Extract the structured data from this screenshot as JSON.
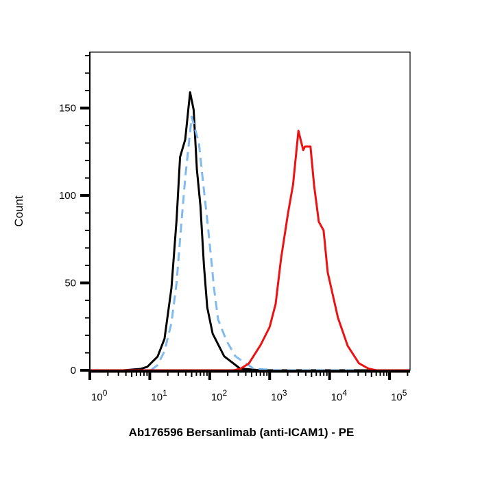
{
  "chart_data": {
    "type": "line",
    "title": "",
    "xlabel": "Ab176596 Bersanlimab (anti-ICAM1) - PE",
    "ylabel": "Count",
    "xscale": "log",
    "xlim": [
      1,
      220000
    ],
    "ylim": [
      0,
      182
    ],
    "grid": false,
    "legend": "none",
    "x_ticks": [
      {
        "value": 1,
        "base": "10",
        "exp": "0"
      },
      {
        "value": 10,
        "base": "10",
        "exp": "1"
      },
      {
        "value": 100,
        "base": "10",
        "exp": "2"
      },
      {
        "value": 1000,
        "base": "10",
        "exp": "3"
      },
      {
        "value": 10000,
        "base": "10",
        "exp": "4"
      },
      {
        "value": 100000,
        "base": "10",
        "exp": "5"
      }
    ],
    "y_ticks": [
      "0",
      "50",
      "100",
      "150"
    ],
    "series": [
      {
        "color": "#000000",
        "style": "solid",
        "x": [
          1,
          3.6,
          7,
          9.1,
          13.5,
          17.6,
          23,
          28,
          32,
          39,
          47,
          54,
          61,
          70,
          80,
          91,
          112,
          174,
          321,
          710,
          220000
        ],
        "y": [
          0,
          0,
          0.8,
          2,
          7.8,
          18,
          47,
          86,
          122,
          132,
          159,
          149,
          115,
          94,
          60,
          36,
          21,
          8,
          1,
          0,
          0
        ]
      },
      {
        "color": "#7fbaf0",
        "style": "dashed",
        "x": [
          10.4,
          13.5,
          17.6,
          23,
          28,
          34,
          39,
          45,
          50,
          66,
          75,
          91,
          103,
          118,
          138,
          190,
          268,
          540,
          1200,
          30000
        ],
        "y": [
          0,
          3,
          11,
          27,
          50,
          86,
          110,
          130,
          145,
          130,
          112,
          86,
          68,
          47,
          29,
          17,
          8,
          1,
          0,
          0
        ]
      },
      {
        "color": "#ee1111",
        "style": "solid",
        "x": [
          1,
          250,
          321,
          450,
          708,
          1000,
          1260,
          1550,
          2030,
          2450,
          3020,
          3630,
          3890,
          4800,
          5500,
          6600,
          7950,
          9300,
          13800,
          20000,
          30900,
          44400,
          60000,
          220000
        ],
        "y": [
          0,
          0,
          0.8,
          3.9,
          14.5,
          24.7,
          38,
          64,
          90,
          106,
          137,
          126,
          128,
          128,
          106,
          85,
          80,
          56,
          30,
          14,
          4,
          1,
          0,
          0
        ]
      }
    ]
  }
}
